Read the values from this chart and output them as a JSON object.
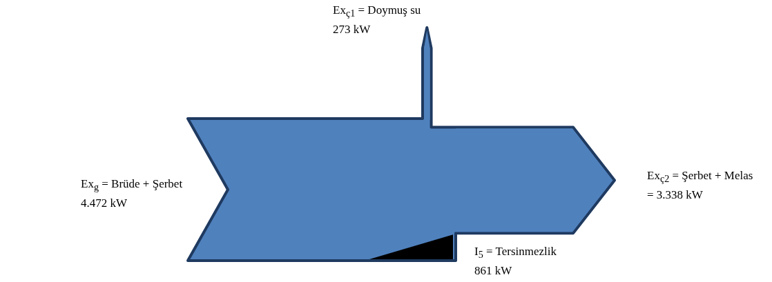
{
  "chart_data": {
    "type": "other",
    "categories": [
      "Ex$_{g}$ = Brüde + Şerbet",
      "Ex$_{ç1}$ = Doymuş su",
      "Ex$_{ç2}$ = Şerbet + Melas",
      "I$_{5}$ = Tersinmezlik"
    ],
    "values": [
      4472,
      273,
      3338,
      861
    ],
    "value_labels": [
      "4.472 kW",
      "273 kW",
      "= 3.338 kW",
      "861 kW"
    ],
    "colors": [
      "#4f81bd",
      "#4f81bd",
      "#4f81bd",
      "#000000"
    ]
  }
}
